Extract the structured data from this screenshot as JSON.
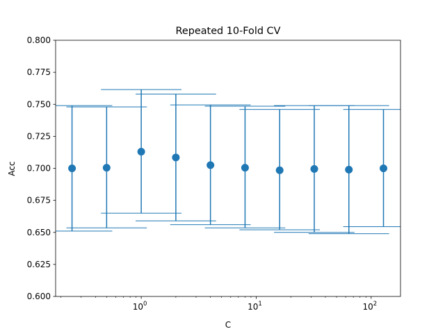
{
  "chart_data": {
    "type": "scatter",
    "title": "Repeated 10-Fold CV",
    "xlabel": "C",
    "ylabel": "Acc",
    "xscale": "log",
    "xlim": [
      0.18,
      180
    ],
    "ylim": [
      0.6,
      0.8
    ],
    "yticks": [
      0.6,
      0.625,
      0.65,
      0.675,
      0.7,
      0.725,
      0.75,
      0.775,
      0.8
    ],
    "ytick_labels": [
      "0.600",
      "0.625",
      "0.650",
      "0.675",
      "0.700",
      "0.725",
      "0.750",
      "0.775",
      "0.800"
    ],
    "xticks": [
      {
        "value": 1,
        "base": "10",
        "exp": "0"
      },
      {
        "value": 10,
        "base": "10",
        "exp": "1"
      },
      {
        "value": 100,
        "base": "10",
        "exp": "2"
      }
    ],
    "grid": false,
    "legend": "none",
    "color": "#1f77b4",
    "series": [
      {
        "x": [
          0.25,
          0.5,
          1,
          2,
          4,
          8,
          16,
          32,
          64,
          128
        ],
        "y": [
          0.7,
          0.7005,
          0.713,
          0.7085,
          0.7025,
          0.7005,
          0.6985,
          0.6995,
          0.699,
          0.7
        ],
        "err_low": [
          0.651,
          0.6535,
          0.665,
          0.659,
          0.656,
          0.6535,
          0.652,
          0.65,
          0.649,
          0.6545
        ],
        "err_high": [
          0.749,
          0.748,
          0.7615,
          0.758,
          0.7495,
          0.7485,
          0.746,
          0.749,
          0.749,
          0.746
        ]
      }
    ]
  }
}
